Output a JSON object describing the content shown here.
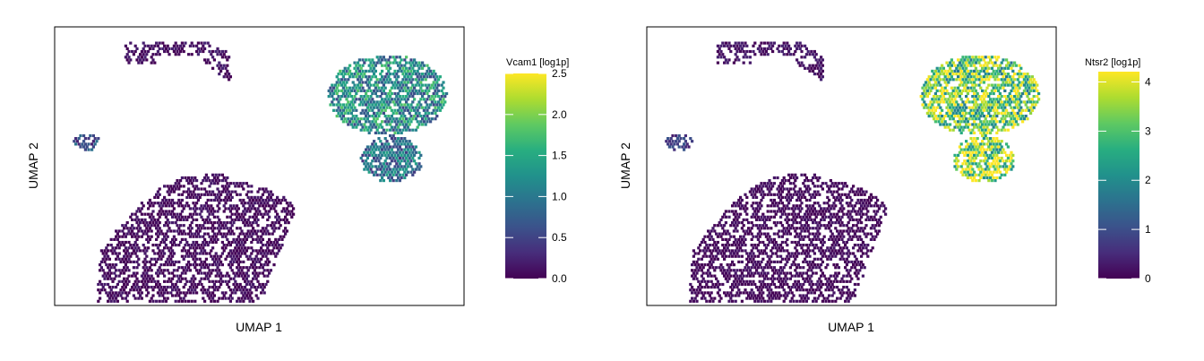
{
  "figure": {
    "panels": [
      {
        "xlabel": "UMAP 1",
        "ylabel": "UMAP 2",
        "legend_title": "Vcam1 [log1p]",
        "legend_ticks": [
          "0.0",
          "0.5",
          "1.0",
          "1.5",
          "2.0",
          "2.5"
        ]
      },
      {
        "xlabel": "UMAP 1",
        "ylabel": "UMAP 2",
        "legend_title": "Ntsr2 [log1p]",
        "legend_ticks": [
          "0",
          "1",
          "2",
          "3",
          "4"
        ]
      }
    ]
  },
  "chart_data": [
    {
      "type": "hexbin",
      "title": "",
      "xlabel": "UMAP 1",
      "ylabel": "UMAP 2",
      "grid": false,
      "legend_placement": "right",
      "colormap": "viridis",
      "color_scale": {
        "label": "Vcam1 [log1p]",
        "range": [
          0,
          2.5
        ],
        "ticks": [
          0,
          0.5,
          1.0,
          1.5,
          2.0,
          2.5
        ]
      },
      "clusters": [
        {
          "region": "top-left arc",
          "mean_value": 0.1
        },
        {
          "region": "small left island",
          "mean_value": 0.6
        },
        {
          "region": "upper-right large cluster",
          "mean_value": 1.2
        },
        {
          "region": "right lower cluster",
          "mean_value": 0.9
        },
        {
          "region": "bottom-left large mass",
          "mean_value": 0.05
        }
      ]
    },
    {
      "type": "hexbin",
      "title": "",
      "xlabel": "UMAP 1",
      "ylabel": "UMAP 2",
      "grid": false,
      "legend_placement": "right",
      "colormap": "viridis",
      "color_scale": {
        "label": "Ntsr2 [log1p]",
        "range": [
          0,
          4.1
        ],
        "ticks": [
          0,
          1,
          2,
          3,
          4
        ]
      },
      "clusters": [
        {
          "region": "top-left arc",
          "mean_value": 0.2
        },
        {
          "region": "small left island",
          "mean_value": 0.7
        },
        {
          "region": "upper-right large cluster",
          "mean_value": 3.1
        },
        {
          "region": "right lower cluster",
          "mean_value": 3.5
        },
        {
          "region": "bottom-left large mass",
          "mean_value": 0.1
        }
      ]
    }
  ]
}
